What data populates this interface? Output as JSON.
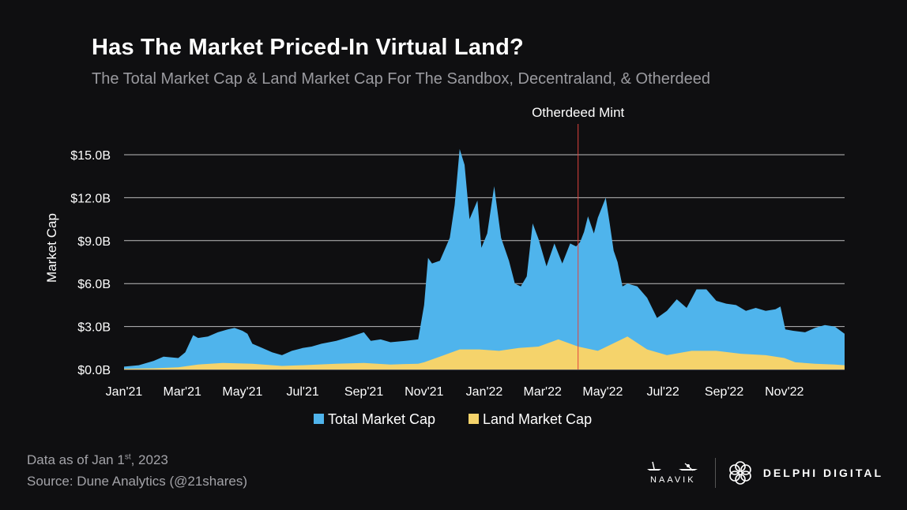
{
  "header": {
    "title": "Has The Market Priced-In Virtual Land?",
    "subtitle": "The Total Market Cap & Land Market Cap For The Sandbox, Decentraland, & Otherdeed"
  },
  "footer": {
    "data_as_of_prefix": "Data as of Jan 1",
    "data_as_of_sup": "st",
    "data_as_of_suffix": ", 2023",
    "source": "Source: Dune Analytics (@21shares)"
  },
  "logos": {
    "naavik": "NAAVIK",
    "delphi": "DELPHI DIGITAL"
  },
  "chart_data": {
    "type": "area",
    "ylabel": "Market Cap",
    "ylim": [
      0,
      16
    ],
    "y_unit": "$B",
    "yticks": [
      0,
      3,
      6,
      9,
      12,
      15
    ],
    "ytick_labels": [
      "$0.0B",
      "$3.0B",
      "$6.0B",
      "$9.0B",
      "$12.0B",
      "$15.0B"
    ],
    "xlim": [
      0,
      730
    ],
    "xticks": [
      0,
      59,
      120,
      181,
      243,
      304,
      365,
      424,
      485,
      546,
      608,
      669
    ],
    "xtick_labels": [
      "Jan'21",
      "Mar'21",
      "May'21",
      "Jul'21",
      "Sep'21",
      "Nov'21",
      "Jan'22",
      "Mar'22",
      "May'22",
      "Jul'22",
      "Sep'22",
      "Nov'22"
    ],
    "grid": true,
    "legend_position": "bottom-center",
    "annotation": {
      "x": 460,
      "label": "Otherdeed Mint"
    },
    "series": [
      {
        "name": "Total Market Cap",
        "color": "#4fb4ec",
        "x": [
          0,
          15,
          30,
          40,
          55,
          62,
          70,
          75,
          85,
          95,
          105,
          112,
          120,
          125,
          130,
          140,
          150,
          160,
          170,
          181,
          190,
          200,
          215,
          230,
          243,
          250,
          260,
          270,
          285,
          298,
          304,
          308,
          312,
          320,
          330,
          335,
          340,
          345,
          350,
          358,
          362,
          368,
          375,
          382,
          390,
          396,
          402,
          408,
          414,
          420,
          428,
          436,
          444,
          452,
          458,
          462,
          466,
          470,
          476,
          480,
          484,
          488,
          492,
          496,
          500,
          505,
          510,
          520,
          530,
          540,
          550,
          560,
          570,
          580,
          590,
          600,
          610,
          620,
          630,
          640,
          650,
          660,
          665,
          670,
          678,
          690,
          700,
          710,
          720,
          730
        ],
        "values": [
          0.2,
          0.3,
          0.6,
          0.9,
          0.8,
          1.2,
          2.4,
          2.2,
          2.3,
          2.6,
          2.8,
          2.9,
          2.7,
          2.5,
          1.8,
          1.5,
          1.2,
          1.0,
          1.3,
          1.5,
          1.6,
          1.8,
          2.0,
          2.3,
          2.6,
          2.0,
          2.1,
          1.9,
          2.0,
          2.1,
          4.5,
          7.8,
          7.4,
          7.6,
          9.2,
          11.5,
          15.4,
          14.3,
          10.5,
          11.8,
          8.5,
          9.5,
          12.8,
          9.2,
          7.6,
          6.0,
          5.8,
          6.5,
          10.2,
          9.1,
          7.2,
          8.8,
          7.4,
          8.8,
          8.6,
          8.9,
          9.6,
          10.7,
          9.5,
          10.6,
          11.3,
          12.0,
          10.2,
          8.3,
          7.5,
          5.8,
          6.0,
          5.8,
          5.0,
          3.6,
          4.1,
          4.9,
          4.3,
          5.6,
          5.6,
          4.8,
          4.6,
          4.5,
          4.1,
          4.3,
          4.1,
          4.2,
          4.4,
          2.8,
          2.7,
          2.6,
          2.9,
          3.1,
          3.0,
          2.5
        ]
      },
      {
        "name": "Land Market Cap",
        "color": "#f5d36b",
        "x": [
          0,
          30,
          55,
          75,
          100,
          130,
          160,
          181,
          215,
          243,
          270,
          298,
          304,
          320,
          340,
          360,
          380,
          400,
          420,
          440,
          460,
          480,
          495,
          510,
          530,
          550,
          575,
          600,
          625,
          650,
          669,
          680,
          700,
          720,
          730
        ],
        "values": [
          0.05,
          0.08,
          0.15,
          0.35,
          0.45,
          0.4,
          0.25,
          0.3,
          0.4,
          0.45,
          0.35,
          0.4,
          0.5,
          0.9,
          1.4,
          1.4,
          1.3,
          1.5,
          1.6,
          2.1,
          1.6,
          1.3,
          1.8,
          2.3,
          1.4,
          1.0,
          1.3,
          1.3,
          1.1,
          1.0,
          0.8,
          0.5,
          0.4,
          0.35,
          0.3
        ]
      }
    ]
  }
}
